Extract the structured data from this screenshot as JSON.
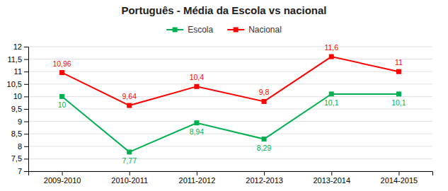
{
  "chart_data": {
    "type": "line",
    "title": "Português - Média da Escola vs nacional",
    "categories": [
      "2009-2010",
      "2010-2011",
      "2011-2012",
      "2012-2013",
      "2013-2014",
      "2014-2015"
    ],
    "series": [
      {
        "name": "Escola",
        "color": "#00b050",
        "marker": "square",
        "values": [
          10.0,
          7.77,
          8.94,
          8.29,
          10.1,
          10.1
        ],
        "value_labels": [
          "10",
          "7,77",
          "8,94",
          "8,29",
          "10,1",
          "10,1"
        ]
      },
      {
        "name": "Nacional",
        "color": "#ff0000",
        "marker": "square",
        "values": [
          10.96,
          9.64,
          10.4,
          9.8,
          11.6,
          11.0
        ],
        "value_labels": [
          "10,96",
          "9,64",
          "10,4",
          "9,8",
          "11,6",
          "11"
        ]
      }
    ],
    "ylim": [
      7,
      12
    ],
    "yticks": [
      7,
      {
        "value": 7.5,
        "label": "7,5"
      },
      8,
      {
        "value": 8.5,
        "label": "8,5"
      },
      9,
      {
        "value": 9.5,
        "label": "9,5"
      },
      10,
      {
        "value": 10.5,
        "label": "10,5"
      },
      11,
      {
        "value": 11.5,
        "label": "11,5"
      },
      12
    ],
    "grid": true,
    "data_labels": true,
    "legend": "top"
  }
}
